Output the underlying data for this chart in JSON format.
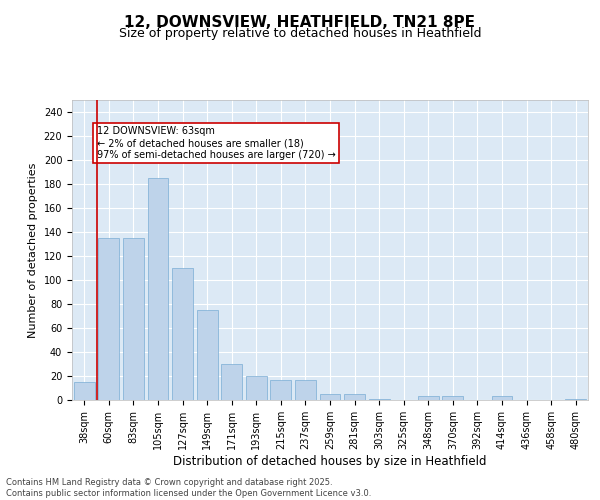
{
  "title_line1": "12, DOWNSVIEW, HEATHFIELD, TN21 8PE",
  "title_line2": "Size of property relative to detached houses in Heathfield",
  "xlabel": "Distribution of detached houses by size in Heathfield",
  "ylabel": "Number of detached properties",
  "categories": [
    "38sqm",
    "60sqm",
    "83sqm",
    "105sqm",
    "127sqm",
    "149sqm",
    "171sqm",
    "193sqm",
    "215sqm",
    "237sqm",
    "259sqm",
    "281sqm",
    "303sqm",
    "325sqm",
    "348sqm",
    "370sqm",
    "392sqm",
    "414sqm",
    "436sqm",
    "458sqm",
    "480sqm"
  ],
  "values": [
    15,
    135,
    135,
    185,
    110,
    75,
    30,
    20,
    17,
    17,
    5,
    5,
    1,
    0,
    3,
    3,
    0,
    3,
    0,
    0,
    1
  ],
  "bar_color": "#bed3ea",
  "bar_edge_color": "#7aadd4",
  "vline_color": "#cc0000",
  "vline_x_index": 1,
  "annotation_text": "12 DOWNSVIEW: 63sqm\n← 2% of detached houses are smaller (18)\n97% of semi-detached houses are larger (720) →",
  "annotation_box_facecolor": "#ffffff",
  "annotation_box_edgecolor": "#cc0000",
  "ylim": [
    0,
    250
  ],
  "yticks": [
    0,
    20,
    40,
    60,
    80,
    100,
    120,
    140,
    160,
    180,
    200,
    220,
    240
  ],
  "background_color": "#dce9f5",
  "grid_color": "#ffffff",
  "footer_text": "Contains HM Land Registry data © Crown copyright and database right 2025.\nContains public sector information licensed under the Open Government Licence v3.0.",
  "title_fontsize": 11,
  "subtitle_fontsize": 9,
  "xlabel_fontsize": 8.5,
  "ylabel_fontsize": 8,
  "tick_fontsize": 7,
  "annotation_fontsize": 7,
  "footer_fontsize": 6
}
